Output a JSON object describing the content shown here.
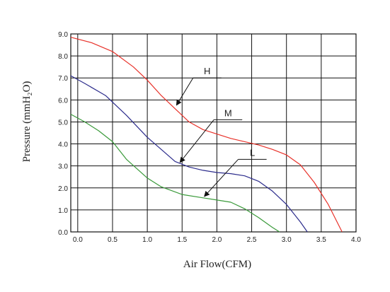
{
  "chart_data": {
    "type": "line",
    "title": "",
    "xlabel": "Air Flow(CFM)",
    "ylabel": "Pressure (mmH₂O)",
    "xlim": [
      -0.1,
      4.0
    ],
    "ylim": [
      0.0,
      9.0
    ],
    "x_ticks": [
      "0.0",
      "0.5",
      "1.0",
      "1.5",
      "2.0",
      "2.5",
      "3.0",
      "3.5",
      "4.0"
    ],
    "y_ticks": [
      "0.0",
      "1.0",
      "2.0",
      "3.0",
      "4.0",
      "5.0",
      "6.0",
      "7.0",
      "8.0",
      "9.0"
    ],
    "grid": true,
    "legend": "none",
    "series": [
      {
        "name": "H",
        "color": "#e8322a",
        "points": [
          [
            -0.1,
            8.85
          ],
          [
            0.2,
            8.6
          ],
          [
            0.5,
            8.2
          ],
          [
            0.8,
            7.5
          ],
          [
            1.0,
            6.9
          ],
          [
            1.2,
            6.2
          ],
          [
            1.4,
            5.6
          ],
          [
            1.6,
            5.0
          ],
          [
            1.8,
            4.65
          ],
          [
            2.0,
            4.45
          ],
          [
            2.2,
            4.25
          ],
          [
            2.4,
            4.1
          ],
          [
            2.6,
            3.95
          ],
          [
            2.8,
            3.75
          ],
          [
            3.0,
            3.5
          ],
          [
            3.2,
            3.05
          ],
          [
            3.4,
            2.25
          ],
          [
            3.6,
            1.25
          ],
          [
            3.8,
            0.0
          ]
        ]
      },
      {
        "name": "M",
        "color": "#2c2c8c",
        "points": [
          [
            -0.1,
            7.1
          ],
          [
            0.1,
            6.75
          ],
          [
            0.4,
            6.2
          ],
          [
            0.7,
            5.3
          ],
          [
            1.0,
            4.3
          ],
          [
            1.2,
            3.75
          ],
          [
            1.4,
            3.2
          ],
          [
            1.6,
            2.95
          ],
          [
            1.8,
            2.8
          ],
          [
            2.0,
            2.7
          ],
          [
            2.2,
            2.65
          ],
          [
            2.4,
            2.55
          ],
          [
            2.6,
            2.3
          ],
          [
            2.8,
            1.85
          ],
          [
            3.0,
            1.25
          ],
          [
            3.2,
            0.45
          ],
          [
            3.3,
            0.0
          ]
        ]
      },
      {
        "name": "L",
        "color": "#3a9a3a",
        "points": [
          [
            -0.1,
            5.35
          ],
          [
            0.1,
            5.0
          ],
          [
            0.3,
            4.6
          ],
          [
            0.5,
            4.1
          ],
          [
            0.7,
            3.3
          ],
          [
            1.0,
            2.45
          ],
          [
            1.2,
            2.05
          ],
          [
            1.5,
            1.7
          ],
          [
            1.8,
            1.55
          ],
          [
            2.0,
            1.45
          ],
          [
            2.2,
            1.35
          ],
          [
            2.4,
            1.05
          ],
          [
            2.6,
            0.65
          ],
          [
            2.8,
            0.2
          ],
          [
            2.9,
            0.0
          ]
        ]
      }
    ],
    "annotations": [
      {
        "text": "H",
        "series": "H",
        "target": [
          1.4,
          5.7
        ],
        "label_at": [
          1.8,
          7.0
        ]
      },
      {
        "text": "M",
        "series": "M",
        "target": [
          1.45,
          3.1
        ],
        "label_at": [
          2.1,
          5.1
        ]
      },
      {
        "text": "L",
        "series": "L",
        "target": [
          1.8,
          1.55
        ],
        "label_at": [
          2.45,
          3.3
        ]
      }
    ]
  }
}
